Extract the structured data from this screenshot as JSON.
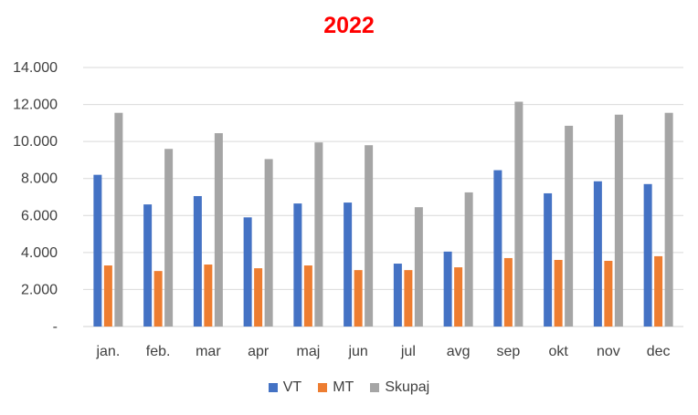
{
  "chart_data": {
    "type": "bar",
    "title": "2022",
    "xlabel": "",
    "ylabel": "",
    "categories": [
      "jan.",
      "feb.",
      "mar",
      "apr",
      "maj",
      "jun",
      "jul",
      "avg",
      "sep",
      "okt",
      "nov",
      "dec"
    ],
    "series": [
      {
        "name": "VT",
        "color": "#4472C4",
        "values": [
          8200,
          6600,
          7050,
          5900,
          6650,
          6700,
          3400,
          4050,
          8450,
          7200,
          7850,
          7700
        ]
      },
      {
        "name": "MT",
        "color": "#ED7D31",
        "values": [
          3300,
          3000,
          3350,
          3150,
          3300,
          3050,
          3050,
          3200,
          3700,
          3600,
          3550,
          3800
        ]
      },
      {
        "name": "Skupaj",
        "color": "#A5A5A5",
        "values": [
          11550,
          9600,
          10450,
          9050,
          9950,
          9800,
          6450,
          7250,
          12150,
          10850,
          11450,
          11550
        ]
      }
    ],
    "ylim": [
      0,
      14000
    ],
    "yticks": [
      0,
      2000,
      4000,
      6000,
      8000,
      10000,
      12000,
      14000
    ],
    "ytick_labels": [
      "-",
      "2.000",
      "4.000",
      "6.000",
      "8.000",
      "10.000",
      "12.000",
      "14.000"
    ],
    "grid": true,
    "legend_position": "bottom",
    "title_color": "#FF0000"
  }
}
